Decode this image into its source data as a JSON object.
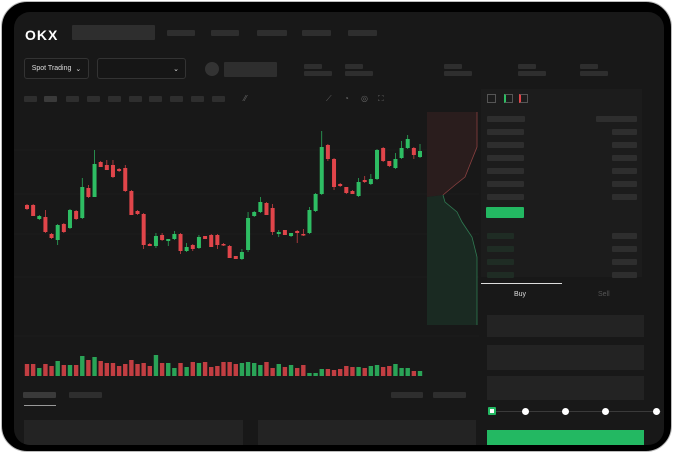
{
  "header": {
    "logo": "OKX"
  },
  "trade_bar": {
    "mode_label": "Spot Trading",
    "mode_icon": "chevron-down-icon",
    "pair_icon": "chevron-down-icon"
  },
  "order_form": {
    "tabs": [
      "Buy",
      "Sell"
    ],
    "active_tab": "Buy",
    "slider_level": 0
  },
  "colors": {
    "up": "#2ebd63",
    "down": "#e0454a",
    "background": "#181818",
    "accent": "#23b862"
  },
  "chart_data": {
    "type": "candlestick",
    "candles": [
      [
        77,
        78,
        72,
        73
      ],
      [
        77,
        78,
        66,
        66
      ],
      [
        63,
        67,
        62,
        66
      ],
      [
        65,
        72,
        49,
        50
      ],
      [
        48,
        49,
        43,
        44
      ],
      [
        42,
        58,
        37,
        57
      ],
      [
        58,
        59,
        49,
        50
      ],
      [
        54,
        73,
        53,
        72
      ],
      [
        71,
        72,
        62,
        63
      ],
      [
        64,
        104,
        63,
        95
      ],
      [
        94,
        97,
        84,
        85
      ],
      [
        85,
        132,
        85,
        118
      ],
      [
        120,
        121,
        115,
        115
      ],
      [
        117,
        122,
        112,
        112
      ],
      [
        117,
        122,
        104,
        105
      ],
      [
        113,
        114,
        110,
        111
      ],
      [
        114,
        117,
        90,
        91
      ],
      [
        91,
        92,
        67,
        67
      ],
      [
        71,
        72,
        67,
        68
      ],
      [
        68,
        69,
        33,
        37
      ],
      [
        38,
        39,
        36,
        36
      ],
      [
        36,
        49,
        34,
        46
      ],
      [
        47,
        49,
        41,
        42
      ],
      [
        41,
        43,
        36,
        43
      ],
      [
        43,
        51,
        42,
        48
      ],
      [
        48,
        49,
        28,
        31
      ],
      [
        31,
        39,
        30,
        35
      ],
      [
        37,
        38,
        31,
        33
      ],
      [
        34,
        47,
        33,
        45
      ],
      [
        46,
        46,
        43,
        43
      ],
      [
        47,
        48,
        35,
        35
      ],
      [
        47,
        48,
        33,
        37
      ],
      [
        38,
        39,
        36,
        37
      ],
      [
        36,
        37,
        24,
        24
      ],
      [
        26,
        26,
        23,
        23
      ],
      [
        23,
        33,
        22,
        30
      ],
      [
        32,
        70,
        30,
        64
      ],
      [
        66,
        71,
        65,
        70
      ],
      [
        70,
        85,
        69,
        80
      ],
      [
        79,
        80,
        67,
        67
      ],
      [
        74,
        78,
        47,
        50
      ],
      [
        48,
        52,
        45,
        50
      ],
      [
        52,
        52,
        47,
        47
      ],
      [
        46,
        49,
        45,
        49
      ],
      [
        51,
        52,
        39,
        49
      ],
      [
        48,
        53,
        46,
        47
      ],
      [
        49,
        75,
        48,
        72
      ],
      [
        71,
        89,
        70,
        88
      ],
      [
        88,
        151,
        87,
        135
      ],
      [
        137,
        138,
        121,
        123
      ],
      [
        123,
        124,
        92,
        95
      ],
      [
        98,
        99,
        95,
        96
      ],
      [
        95,
        95,
        88,
        89
      ],
      [
        91,
        92,
        88,
        88
      ],
      [
        86,
        104,
        85,
        100
      ],
      [
        102,
        106,
        99,
        100
      ],
      [
        98,
        108,
        97,
        103
      ],
      [
        103,
        133,
        102,
        132
      ],
      [
        134,
        135,
        120,
        121
      ],
      [
        121,
        121,
        115,
        116
      ],
      [
        114,
        129,
        113,
        123
      ],
      [
        124,
        141,
        123,
        134
      ],
      [
        134,
        147,
        133,
        143
      ],
      [
        134,
        135,
        123,
        127
      ],
      [
        125,
        138,
        124,
        131
      ]
    ],
    "volumes": [
      12,
      12,
      8,
      12,
      10,
      15,
      11,
      11,
      11,
      20,
      16,
      19,
      15,
      13,
      13,
      10,
      12,
      16,
      12,
      13,
      10,
      21,
      13,
      13,
      8,
      13,
      9,
      14,
      13,
      14,
      9,
      10,
      14,
      14,
      12,
      13,
      14,
      13,
      11,
      14,
      8,
      12,
      9,
      11,
      8,
      11,
      3,
      3,
      7,
      7,
      6,
      7,
      10,
      9,
      9,
      8,
      10,
      11,
      9,
      10,
      12,
      8,
      8,
      5,
      5
    ],
    "grid": true
  }
}
